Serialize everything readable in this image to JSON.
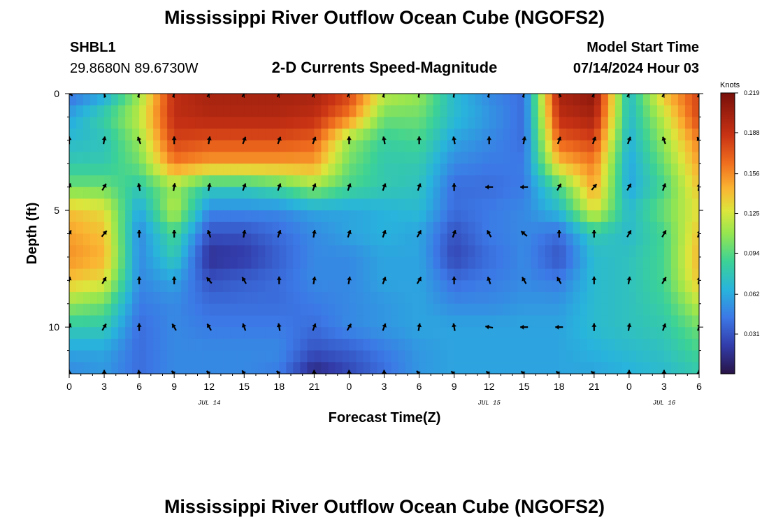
{
  "header": {
    "title": "Mississippi River Outflow Ocean Cube (NGOFS2)",
    "station_id": "SHBL1",
    "coordinates": "29.8680N  89.6730W",
    "chart_title": "2-D Currents Speed-Magnitude",
    "start_label": "Model Start Time",
    "start_value": "07/14/2024 Hour 03"
  },
  "footer": {
    "title": "Mississippi River Outflow Ocean Cube (NGOFS2)"
  },
  "chart_data": {
    "type": "heatmap",
    "xlabel": "Forecast Time(Z)",
    "ylabel": "Depth (ft)",
    "x_tick_labels": [
      "0",
      "3",
      "6",
      "9",
      "12",
      "15",
      "18",
      "21",
      "0",
      "3",
      "6",
      "9",
      "12",
      "15",
      "18",
      "21",
      "0",
      "3",
      "6"
    ],
    "y_tick_labels": [
      "0",
      "5",
      "10"
    ],
    "y_range": [
      0,
      12
    ],
    "date_labels": [
      {
        "label": "JUL 14",
        "hour": 12
      },
      {
        "label": "JUL 15",
        "hour": 36
      },
      {
        "label": "JUL 16",
        "hour": 51
      }
    ],
    "x_range_hours": [
      0,
      54
    ],
    "colorbar": {
      "unit": "Knots",
      "min": 0.0,
      "max": 0.219,
      "ticks": [
        "0.219",
        "0.188",
        "0.156",
        "0.125",
        "0.094",
        "0.062",
        "0.031"
      ]
    },
    "depth_rows_ft": [
      0,
      1,
      2,
      3,
      4,
      5,
      6,
      7,
      8,
      9,
      10,
      11,
      12
    ],
    "time_columns_hours": [
      0,
      3,
      6,
      9,
      12,
      15,
      18,
      21,
      24,
      27,
      30,
      33,
      36,
      39,
      42,
      45,
      48,
      51,
      54
    ],
    "speed_knots": [
      [
        0.04,
        0.06,
        0.11,
        0.19,
        0.2,
        0.2,
        0.2,
        0.2,
        0.18,
        0.12,
        0.11,
        0.07,
        0.05,
        0.04,
        0.2,
        0.21,
        0.07,
        0.14,
        0.18
      ],
      [
        0.06,
        0.085,
        0.12,
        0.19,
        0.195,
        0.195,
        0.195,
        0.19,
        0.16,
        0.1,
        0.1,
        0.07,
        0.055,
        0.04,
        0.19,
        0.2,
        0.07,
        0.12,
        0.18
      ],
      [
        0.07,
        0.075,
        0.11,
        0.18,
        0.175,
        0.175,
        0.175,
        0.17,
        0.11,
        0.085,
        0.09,
        0.06,
        0.05,
        0.04,
        0.17,
        0.18,
        0.065,
        0.11,
        0.16
      ],
      [
        0.08,
        0.08,
        0.1,
        0.16,
        0.15,
        0.15,
        0.15,
        0.15,
        0.1,
        0.08,
        0.08,
        0.05,
        0.045,
        0.045,
        0.14,
        0.16,
        0.06,
        0.1,
        0.15
      ],
      [
        0.1,
        0.1,
        0.08,
        0.11,
        0.08,
        0.08,
        0.09,
        0.11,
        0.09,
        0.08,
        0.075,
        0.04,
        0.04,
        0.045,
        0.09,
        0.15,
        0.06,
        0.09,
        0.14
      ],
      [
        0.14,
        0.13,
        0.06,
        0.12,
        0.05,
        0.05,
        0.05,
        0.06,
        0.06,
        0.065,
        0.07,
        0.04,
        0.045,
        0.05,
        0.07,
        0.13,
        0.07,
        0.1,
        0.13
      ],
      [
        0.15,
        0.14,
        0.05,
        0.09,
        0.03,
        0.03,
        0.04,
        0.05,
        0.06,
        0.065,
        0.06,
        0.03,
        0.045,
        0.05,
        0.04,
        0.08,
        0.07,
        0.09,
        0.14
      ],
      [
        0.155,
        0.145,
        0.05,
        0.08,
        0.015,
        0.02,
        0.035,
        0.05,
        0.05,
        0.06,
        0.06,
        0.025,
        0.04,
        0.05,
        0.03,
        0.07,
        0.075,
        0.09,
        0.145
      ],
      [
        0.14,
        0.13,
        0.05,
        0.06,
        0.03,
        0.035,
        0.04,
        0.05,
        0.05,
        0.06,
        0.06,
        0.04,
        0.045,
        0.05,
        0.045,
        0.07,
        0.075,
        0.09,
        0.14
      ],
      [
        0.11,
        0.1,
        0.045,
        0.05,
        0.04,
        0.04,
        0.04,
        0.045,
        0.05,
        0.055,
        0.06,
        0.05,
        0.05,
        0.055,
        0.055,
        0.07,
        0.075,
        0.085,
        0.12
      ],
      [
        0.08,
        0.08,
        0.04,
        0.05,
        0.045,
        0.045,
        0.045,
        0.04,
        0.05,
        0.055,
        0.06,
        0.06,
        0.06,
        0.06,
        0.06,
        0.07,
        0.075,
        0.08,
        0.1
      ],
      [
        0.06,
        0.06,
        0.04,
        0.05,
        0.05,
        0.05,
        0.05,
        0.03,
        0.035,
        0.045,
        0.055,
        0.06,
        0.06,
        0.06,
        0.06,
        0.065,
        0.07,
        0.075,
        0.09
      ],
      [
        0.05,
        0.055,
        0.04,
        0.05,
        0.05,
        0.05,
        0.045,
        0.01,
        0.025,
        0.04,
        0.055,
        0.06,
        0.06,
        0.06,
        0.06,
        0.06,
        0.065,
        0.07,
        0.08
      ]
    ],
    "arrow_depths_ft": [
      0,
      2,
      4,
      6,
      8,
      10,
      12
    ],
    "direction_deg": [
      [
        300,
        340,
        20,
        20,
        30,
        30,
        30,
        30,
        30,
        20,
        10,
        10,
        20,
        20,
        330,
        30,
        30,
        30,
        20
      ],
      [
        0,
        10,
        340,
        0,
        10,
        20,
        20,
        20,
        0,
        350,
        0,
        350,
        0,
        10,
        20,
        20,
        20,
        340,
        330
      ],
      [
        20,
        30,
        350,
        10,
        10,
        20,
        20,
        20,
        20,
        20,
        20,
        0,
        270,
        270,
        30,
        40,
        30,
        20,
        10
      ],
      [
        30,
        40,
        0,
        0,
        340,
        10,
        20,
        10,
        20,
        20,
        30,
        20,
        330,
        310,
        0,
        0,
        30,
        30,
        20
      ],
      [
        10,
        30,
        0,
        0,
        320,
        330,
        0,
        10,
        10,
        20,
        30,
        0,
        340,
        330,
        330,
        0,
        10,
        30,
        10
      ],
      [
        20,
        30,
        0,
        330,
        330,
        340,
        350,
        20,
        30,
        20,
        10,
        350,
        280,
        270,
        270,
        0,
        10,
        20,
        20
      ],
      [
        0,
        0,
        350,
        320,
        320,
        330,
        320,
        0,
        0,
        0,
        320,
        310,
        310,
        310,
        310,
        310,
        0,
        0,
        0
      ]
    ]
  }
}
